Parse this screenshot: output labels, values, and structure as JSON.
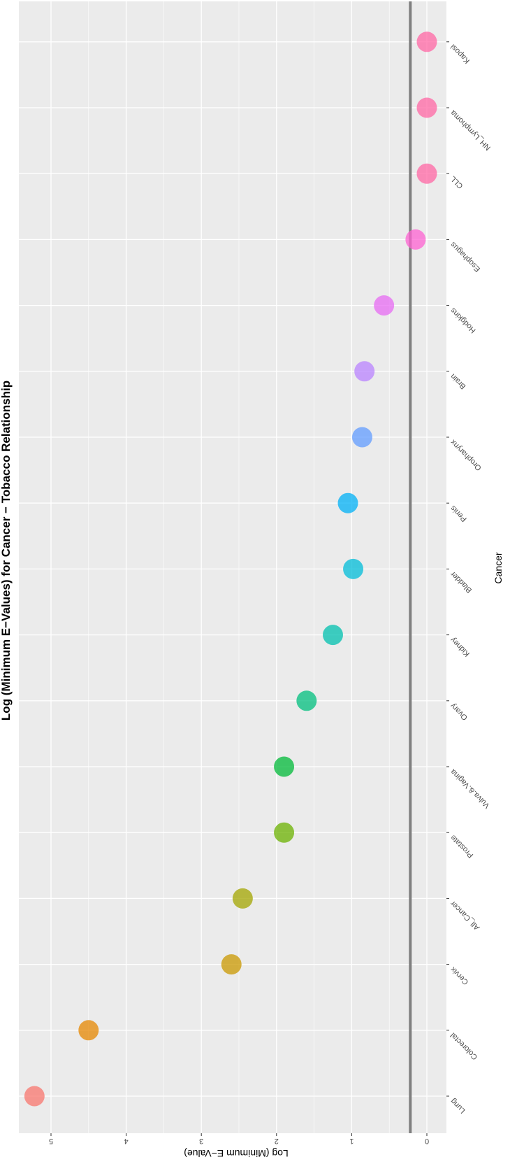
{
  "chart_data": {
    "type": "scatter",
    "title": "Log (Minimum E−Values) for Cancer − Tobacco Relationship",
    "xlabel": "Cancer",
    "ylabel": "Log (Minimum E−Value)",
    "categories": [
      "Lung",
      "Colorectal",
      "Cervix",
      "All_Cancer",
      "Prostate",
      "Vulva.&.Vagina",
      "Ovary",
      "Kidney",
      "Bladder",
      "Penis",
      "Oropharynx",
      "Brain",
      "Hodgkins",
      "Esophagus",
      "CLL",
      "NH_Lymphoma",
      "Kaposi"
    ],
    "values": [
      5.22,
      4.5,
      2.6,
      2.45,
      1.9,
      1.9,
      1.6,
      1.25,
      0.98,
      1.05,
      0.86,
      0.83,
      0.57,
      0.15,
      0.0,
      0.0,
      0.0
    ],
    "point_colors": [
      "#F8766D",
      "#E58700",
      "#C99800",
      "#A3A500",
      "#6BB100",
      "#00BA38",
      "#00BF7D",
      "#00C0AF",
      "#00BCD8",
      "#00B0F6",
      "#619CFF",
      "#B983FF",
      "#E76BF3",
      "#FD61D1",
      "#FF67A4",
      "#FF67A4",
      "#FF67A4"
    ],
    "reference_line": 0.22,
    "y_ticks": [
      "0",
      "1",
      "2",
      "3",
      "4",
      "5"
    ],
    "ylim": [
      -0.28,
      5.52
    ],
    "grid": true,
    "orientation": "rotated-180"
  },
  "colors": {
    "panel_background": "#EBEBEB",
    "grid_line": "#FFFFFF",
    "reference_line": "#7F7F7F"
  }
}
